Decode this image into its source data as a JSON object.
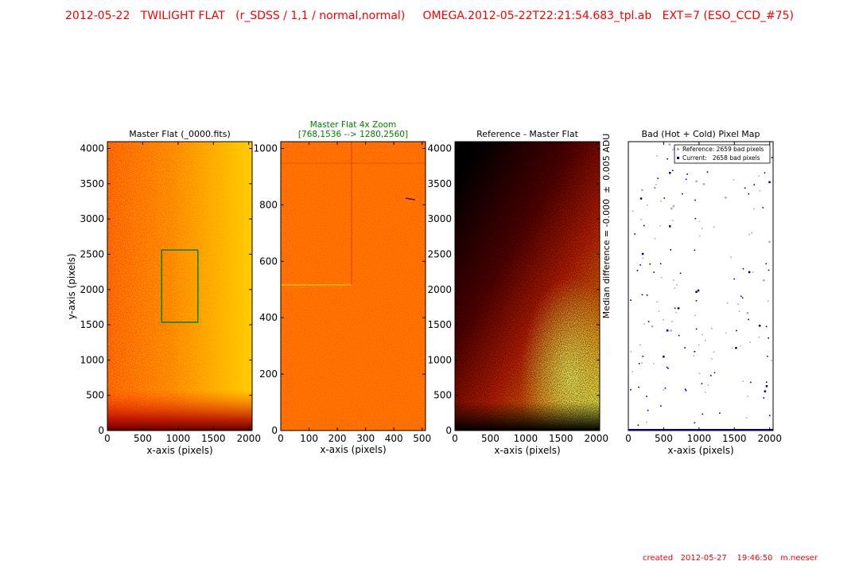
{
  "header": {
    "title": "2012-05-22   TWILIGHT FLAT   (r_SDSS / 1,1 / normal,normal)     OMEGA.2012-05-22T22:21:54.683_tpl.ab   EXT=7 (ESO_CCD_#75)"
  },
  "footer": {
    "created": "created   2012-05-27    19:46:50   m.neeser"
  },
  "colors": {
    "title": "#ff0000",
    "zoom_title": "#008000",
    "zoom_box": "#008000",
    "bad_pixel": "#00008b"
  },
  "chart_data": [
    {
      "type": "heatmap",
      "title": "Master Flat (_0000.fits)",
      "xlabel": "x-axis (pixels)",
      "ylabel": "y-axis (pixels)",
      "xlim": [
        0,
        2048
      ],
      "ylim": [
        0,
        4096
      ],
      "xticks": [
        "0",
        "500",
        "1000",
        "1500",
        "2000"
      ],
      "yticks": [
        "0",
        "500",
        "1000",
        "1500",
        "2000",
        "2500",
        "3000",
        "3500",
        "4000"
      ],
      "colormap": "hot",
      "zoom_region": {
        "x": [
          768,
          1280
        ],
        "y": [
          1536,
          2560
        ]
      }
    },
    {
      "type": "heatmap",
      "title_line1": "Master Flat 4x Zoom",
      "title_line2": "[768,1536 --> 1280,2560]",
      "xlabel": "x-axis (pixels)",
      "xlim": [
        0,
        512
      ],
      "ylim": [
        0,
        1024
      ],
      "xticks": [
        "0",
        "100",
        "200",
        "300",
        "400",
        "500"
      ],
      "yticks": [
        "0",
        "200",
        "400",
        "600",
        "800",
        "1000"
      ],
      "colormap": "hot"
    },
    {
      "type": "heatmap",
      "title": "Reference - Master Flat",
      "xlabel": "x-axis (pixels)",
      "ylabel": "Median difference = -0.000  ±  0.005 ADU",
      "xlim": [
        0,
        2048
      ],
      "ylim": [
        0,
        4096
      ],
      "xticks": [
        "0",
        "500",
        "1000",
        "1500",
        "2000"
      ],
      "yticks": [
        "0",
        "500",
        "1000",
        "1500",
        "2000",
        "2500",
        "3000",
        "3500",
        "4000"
      ],
      "colormap": "hot"
    },
    {
      "type": "scatter",
      "title": "Bad (Hot + Cold) Pixel Map",
      "xlabel": "x-axis (pixels)",
      "xlim": [
        0,
        2048
      ],
      "ylim": [
        0,
        4096
      ],
      "xticks": [
        "0",
        "500",
        "1000",
        "1500",
        "2000"
      ],
      "legend": [
        "Reference: 2659 bad pixels",
        "Current:   2658 bad pixels"
      ],
      "legend_position": "top-right",
      "series": [
        {
          "name": "Reference: 2659 bad pixels",
          "color": "#b8a0d8"
        },
        {
          "name": "Current:   2658 bad pixels",
          "color": "#00008b"
        }
      ]
    }
  ]
}
